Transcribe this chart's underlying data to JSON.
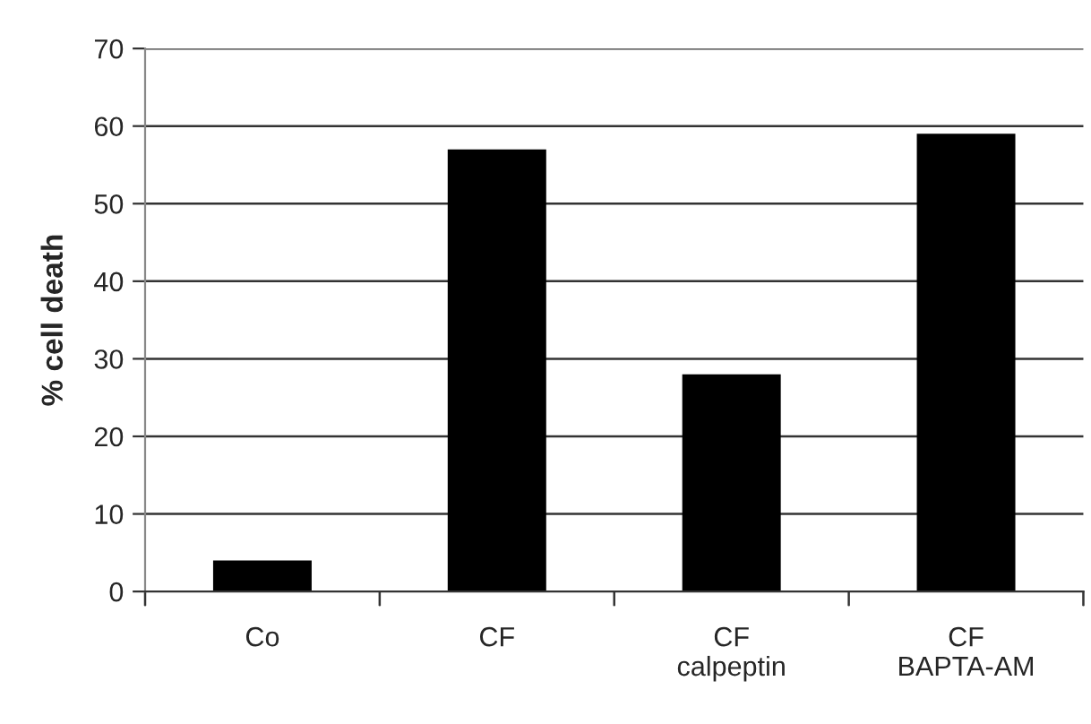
{
  "chart_data": {
    "type": "bar",
    "ylabel": "% cell death",
    "categories": [
      "Co",
      "CF",
      "CF\ncalpeptin",
      "CF\nBAPTA-AM"
    ],
    "values": [
      4,
      57,
      28,
      59
    ],
    "color": "#000000",
    "ylim": [
      0,
      70
    ],
    "yticks": [
      0,
      10,
      20,
      30,
      40,
      50,
      60,
      70
    ],
    "grid": "y"
  }
}
